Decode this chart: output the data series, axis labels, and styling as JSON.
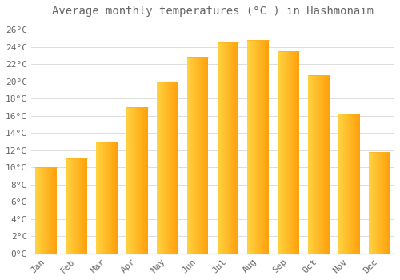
{
  "title": "Average monthly temperatures (°C ) in Hashmonaim",
  "months": [
    "Jan",
    "Feb",
    "Mar",
    "Apr",
    "May",
    "Jun",
    "Jul",
    "Aug",
    "Sep",
    "Oct",
    "Nov",
    "Dec"
  ],
  "temperatures": [
    10.0,
    11.0,
    13.0,
    17.0,
    20.0,
    22.8,
    24.5,
    24.8,
    23.5,
    20.7,
    16.2,
    11.8
  ],
  "bar_color_left": "#FFD060",
  "bar_color_right": "#FFA000",
  "background_color": "#FFFFFF",
  "grid_color": "#DDDDDD",
  "text_color": "#666666",
  "ylim": [
    0,
    27
  ],
  "yticks": [
    0,
    2,
    4,
    6,
    8,
    10,
    12,
    14,
    16,
    18,
    20,
    22,
    24,
    26
  ],
  "ytick_labels": [
    "0°C",
    "2°C",
    "4°C",
    "6°C",
    "8°C",
    "10°C",
    "12°C",
    "14°C",
    "16°C",
    "18°C",
    "20°C",
    "22°C",
    "24°C",
    "26°C"
  ],
  "title_fontsize": 10,
  "tick_fontsize": 8,
  "font_family": "monospace",
  "bar_width": 0.7
}
